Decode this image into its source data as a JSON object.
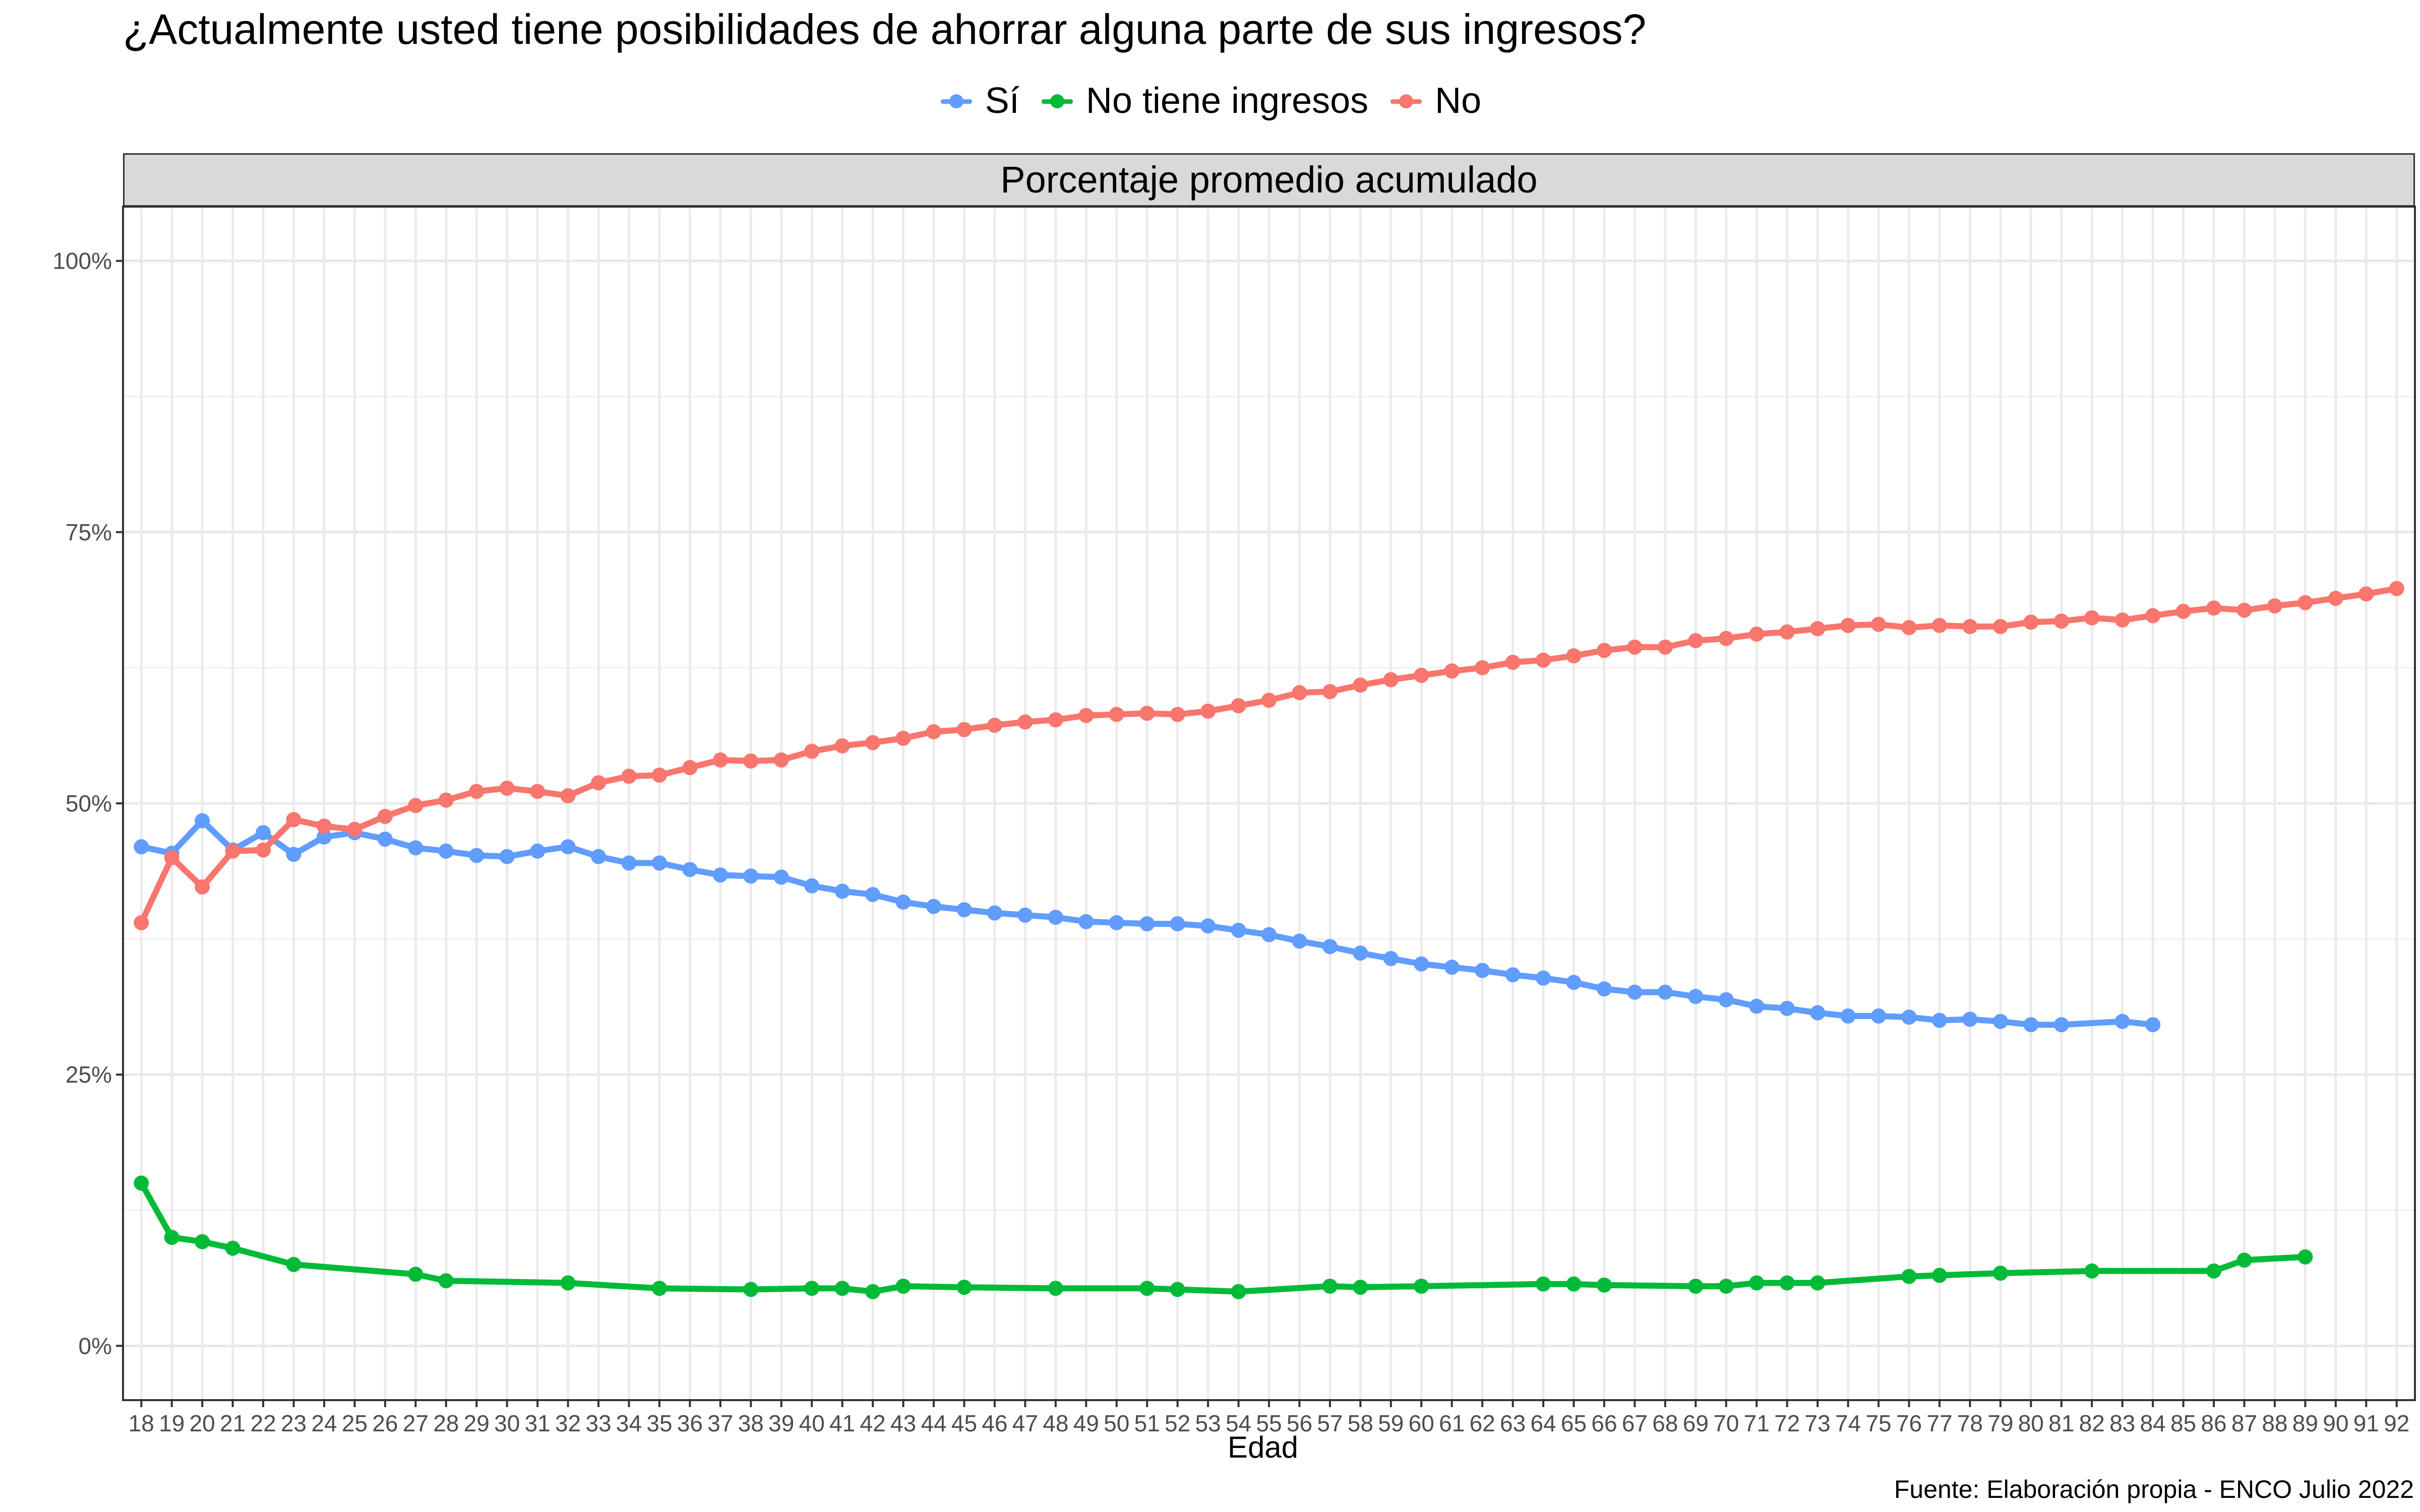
{
  "chart_data": {
    "type": "line",
    "title": "¿Actualmente usted tiene posibilidades de ahorrar alguna parte de sus ingresos?",
    "facet_label": "Porcentaje promedio acumulado",
    "xlabel": "Edad",
    "ylabel": "",
    "caption": "Fuente: Elaboración propia - ENCO Julio 2022",
    "x_ticks": [
      18,
      19,
      20,
      21,
      22,
      23,
      24,
      25,
      26,
      27,
      28,
      29,
      30,
      31,
      32,
      33,
      34,
      35,
      36,
      37,
      38,
      39,
      40,
      41,
      42,
      43,
      44,
      45,
      46,
      47,
      48,
      49,
      50,
      51,
      52,
      53,
      54,
      55,
      56,
      57,
      58,
      59,
      60,
      61,
      62,
      63,
      64,
      65,
      66,
      67,
      68,
      69,
      70,
      71,
      72,
      73,
      74,
      75,
      76,
      77,
      78,
      79,
      80,
      81,
      82,
      83,
      84,
      85,
      86,
      87,
      88,
      89,
      90,
      91,
      92
    ],
    "xlim": [
      17.4,
      92.6
    ],
    "y_ticks": [
      0,
      25,
      50,
      75,
      100
    ],
    "y_tick_labels": [
      "0%",
      "25%",
      "50%",
      "75%",
      "100%"
    ],
    "ylim": [
      -5,
      105
    ],
    "grid": true,
    "legend_position": "top",
    "series": [
      {
        "name": "Sí",
        "color": "#619cff",
        "x": [
          18,
          19,
          20,
          21,
          22,
          23,
          24,
          25,
          26,
          27,
          28,
          29,
          30,
          31,
          32,
          33,
          34,
          35,
          36,
          37,
          38,
          39,
          40,
          41,
          42,
          43,
          44,
          45,
          46,
          47,
          48,
          49,
          50,
          51,
          52,
          53,
          54,
          55,
          56,
          57,
          58,
          59,
          60,
          61,
          62,
          63,
          64,
          65,
          66,
          67,
          68,
          69,
          70,
          71,
          72,
          73,
          74,
          75,
          76,
          77,
          78,
          79,
          80,
          81,
          83,
          84
        ],
        "values": [
          46.0,
          45.4,
          48.4,
          45.7,
          47.3,
          45.3,
          46.9,
          47.3,
          46.7,
          45.9,
          45.6,
          45.2,
          45.1,
          45.6,
          46.0,
          45.1,
          44.5,
          44.5,
          43.9,
          43.4,
          43.3,
          43.2,
          42.4,
          41.9,
          41.6,
          40.9,
          40.5,
          40.2,
          39.9,
          39.7,
          39.5,
          39.1,
          39.0,
          38.9,
          38.9,
          38.7,
          38.3,
          37.9,
          37.3,
          36.8,
          36.2,
          35.7,
          35.2,
          34.9,
          34.6,
          34.2,
          33.9,
          33.5,
          32.9,
          32.6,
          32.6,
          32.2,
          31.9,
          31.3,
          31.1,
          30.7,
          30.4,
          30.4,
          30.3,
          30.0,
          30.1,
          29.9,
          29.6,
          29.6,
          29.9,
          29.6
        ]
      },
      {
        "name": "No tiene ingresos",
        "color": "#00ba38",
        "x": [
          18,
          19,
          20,
          21,
          23,
          27,
          28,
          32,
          35,
          38,
          40,
          41,
          42,
          43,
          45,
          48,
          51,
          52,
          54,
          57,
          58,
          60,
          64,
          65,
          66,
          69,
          70,
          71,
          72,
          73,
          76,
          77,
          79,
          82,
          86,
          87,
          89
        ],
        "values": [
          15.0,
          10.0,
          9.6,
          9.0,
          7.5,
          6.6,
          6.0,
          5.8,
          5.3,
          5.2,
          5.3,
          5.3,
          5.0,
          5.5,
          5.4,
          5.3,
          5.3,
          5.2,
          5.0,
          5.5,
          5.4,
          5.5,
          5.7,
          5.7,
          5.6,
          5.5,
          5.5,
          5.8,
          5.8,
          5.8,
          6.4,
          6.5,
          6.7,
          6.9,
          6.9,
          7.9,
          8.2
        ]
      },
      {
        "name": "No",
        "color": "#f8766d",
        "x": [
          18,
          19,
          20,
          21,
          22,
          23,
          24,
          25,
          26,
          27,
          28,
          29,
          30,
          31,
          32,
          33,
          34,
          35,
          36,
          37,
          38,
          39,
          40,
          41,
          42,
          43,
          44,
          45,
          46,
          47,
          48,
          49,
          50,
          51,
          52,
          53,
          54,
          55,
          56,
          57,
          58,
          59,
          60,
          61,
          62,
          63,
          64,
          65,
          66,
          67,
          68,
          69,
          70,
          71,
          72,
          73,
          74,
          75,
          76,
          77,
          78,
          79,
          80,
          81,
          82,
          83,
          84,
          85,
          86,
          87,
          88,
          89,
          90,
          91,
          92
        ],
        "values": [
          39.0,
          45.0,
          42.3,
          45.6,
          45.7,
          48.5,
          47.9,
          47.6,
          48.8,
          49.8,
          50.3,
          51.1,
          51.4,
          51.1,
          50.7,
          51.9,
          52.5,
          52.6,
          53.3,
          54.0,
          53.9,
          54.0,
          54.8,
          55.3,
          55.6,
          56.0,
          56.6,
          56.8,
          57.2,
          57.5,
          57.7,
          58.1,
          58.2,
          58.3,
          58.2,
          58.5,
          59.0,
          59.5,
          60.2,
          60.3,
          60.9,
          61.4,
          61.8,
          62.2,
          62.5,
          63.0,
          63.2,
          63.6,
          64.1,
          64.4,
          64.4,
          65.0,
          65.2,
          65.6,
          65.8,
          66.1,
          66.4,
          66.5,
          66.2,
          66.4,
          66.3,
          66.3,
          66.7,
          66.8,
          67.1,
          66.9,
          67.3,
          67.7,
          68.0,
          67.8,
          68.2,
          68.5,
          68.9,
          69.3,
          69.8
        ]
      }
    ]
  }
}
